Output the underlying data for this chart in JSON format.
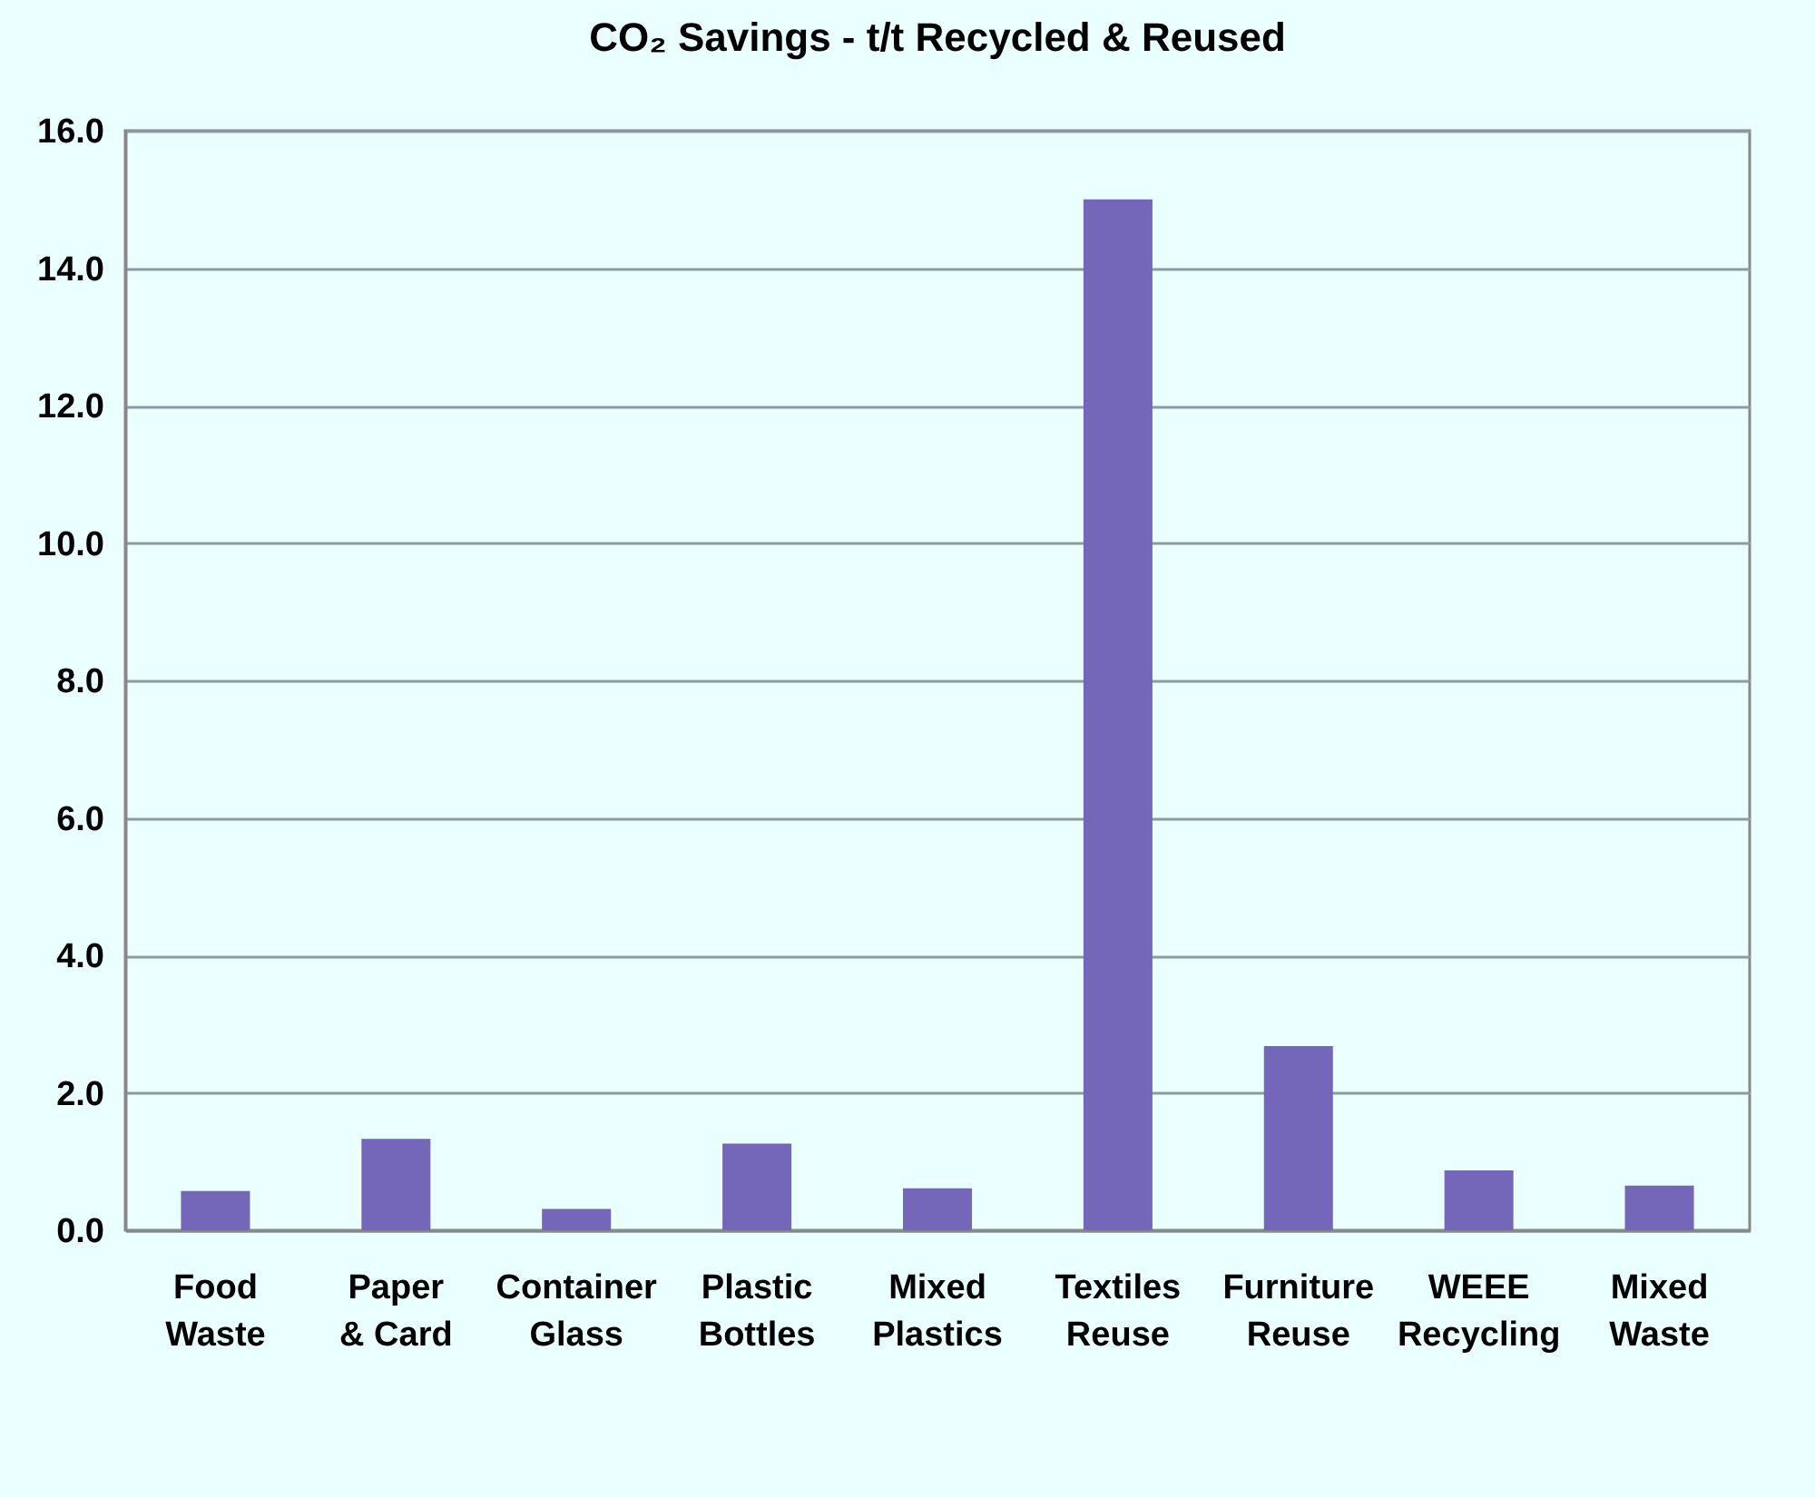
{
  "chart_data": {
    "type": "bar",
    "title": "CO₂ Savings - t/t Recycled & Reused",
    "categories": [
      "Food Waste",
      "Paper & Card",
      "Container Glass",
      "Plastic Bottles",
      "Mixed Plastics",
      "Textiles Reuse",
      "Furniture Reuse",
      "WEEE Recycling",
      "Mixed Waste"
    ],
    "values": [
      0.57,
      1.33,
      0.31,
      1.26,
      0.61,
      15.0,
      2.68,
      0.87,
      0.65
    ],
    "color": "#7466b8",
    "ylim": [
      0,
      16
    ],
    "yticks": [
      {
        "value": 0,
        "label": "0.0"
      },
      {
        "value": 2,
        "label": "2.0"
      },
      {
        "value": 4,
        "label": "4.0"
      },
      {
        "value": 6,
        "label": "6.0"
      },
      {
        "value": 8,
        "label": "8.0"
      },
      {
        "value": 10,
        "label": "10.0"
      },
      {
        "value": 12,
        "label": "12.0"
      },
      {
        "value": 14,
        "label": "14.0"
      },
      {
        "value": 16,
        "label": "16.0"
      }
    ],
    "grid": "y"
  }
}
